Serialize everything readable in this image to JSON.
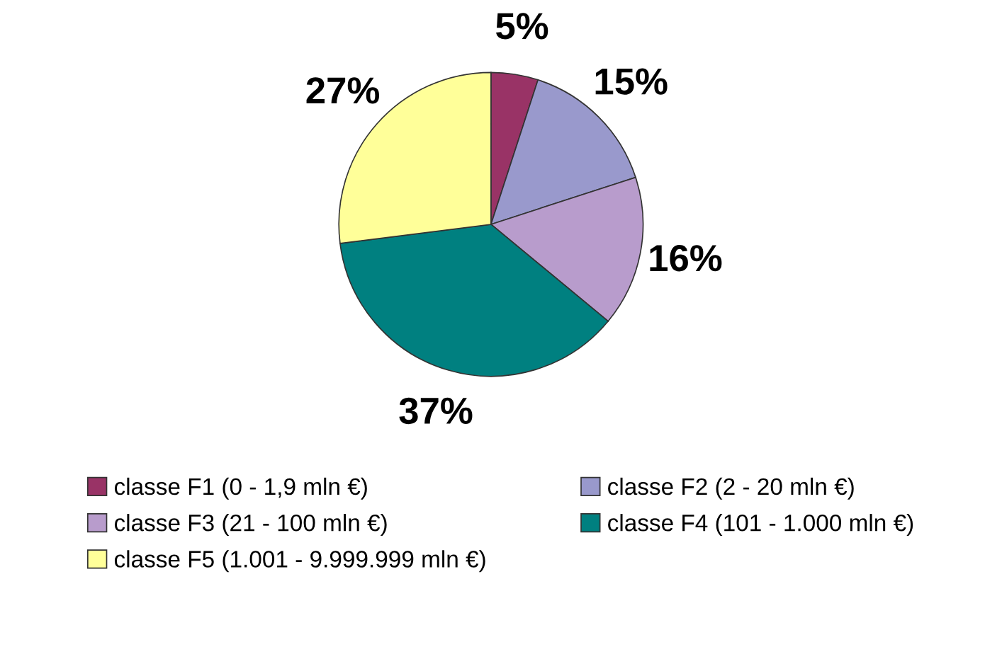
{
  "chart_data": {
    "type": "pie",
    "categories": [
      "classe F1 (0 - 1,9 mln €)",
      "classe F2 (2 - 20 mln €)",
      "classe F3 (21 - 100 mln €)",
      "classe F4 (101 - 1.000 mln €)",
      "classe F5 (1.001 - 9.999.999 mln €)"
    ],
    "values": [
      5,
      15,
      16,
      37,
      27
    ],
    "value_labels": [
      "5%",
      "15%",
      "16%",
      "37%",
      "27%"
    ],
    "colors": [
      "#993366",
      "#9999cc",
      "#b89ccc",
      "#008080",
      "#ffff99"
    ],
    "legend": "bottom"
  }
}
